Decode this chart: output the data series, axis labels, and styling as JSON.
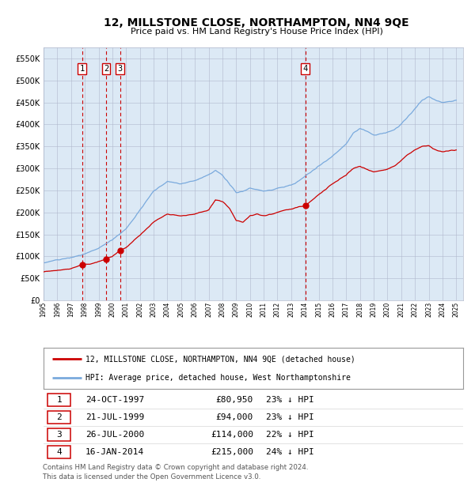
{
  "title": "12, MILLSTONE CLOSE, NORTHAMPTON, NN4 9QE",
  "subtitle": "Price paid vs. HM Land Registry's House Price Index (HPI)",
  "plot_bg_color": "#dce9f5",
  "ylim": [
    0,
    575000
  ],
  "yticks": [
    0,
    50000,
    100000,
    150000,
    200000,
    250000,
    300000,
    350000,
    400000,
    450000,
    500000,
    550000
  ],
  "transactions": [
    {
      "label": "1",
      "date": "24-OCT-1997",
      "price": 80950,
      "pct": "23%",
      "x_year": 1997.81
    },
    {
      "label": "2",
      "date": "21-JUL-1999",
      "price": 94000,
      "pct": "23%",
      "x_year": 1999.55
    },
    {
      "label": "3",
      "date": "26-JUL-2000",
      "price": 114000,
      "pct": "22%",
      "x_year": 2000.57
    },
    {
      "label": "4",
      "date": "16-JAN-2014",
      "price": 215000,
      "pct": "24%",
      "x_year": 2014.04
    }
  ],
  "hpi_line_color": "#7aaadd",
  "price_line_color": "#cc0000",
  "vline_color": "#cc0000",
  "marker_color": "#cc0000",
  "legend_label_price": "12, MILLSTONE CLOSE, NORTHAMPTON, NN4 9QE (detached house)",
  "legend_label_hpi": "HPI: Average price, detached house, West Northamptonshire",
  "footer": "Contains HM Land Registry data © Crown copyright and database right 2024.\nThis data is licensed under the Open Government Licence v3.0.",
  "xlim_start": 1995.0,
  "xlim_end": 2025.5,
  "hpi_seed_values": [
    [
      1995.0,
      85000
    ],
    [
      1996.0,
      92000
    ],
    [
      1997.0,
      97000
    ],
    [
      1998.0,
      105000
    ],
    [
      1999.0,
      118000
    ],
    [
      2000.0,
      138000
    ],
    [
      2001.0,
      162000
    ],
    [
      2002.0,
      205000
    ],
    [
      2003.0,
      248000
    ],
    [
      2004.0,
      270000
    ],
    [
      2005.0,
      265000
    ],
    [
      2006.0,
      272000
    ],
    [
      2007.0,
      285000
    ],
    [
      2007.5,
      295000
    ],
    [
      2008.0,
      285000
    ],
    [
      2008.5,
      265000
    ],
    [
      2009.0,
      245000
    ],
    [
      2009.5,
      248000
    ],
    [
      2010.0,
      255000
    ],
    [
      2010.5,
      252000
    ],
    [
      2011.0,
      248000
    ],
    [
      2011.5,
      250000
    ],
    [
      2012.0,
      255000
    ],
    [
      2012.5,
      258000
    ],
    [
      2013.0,
      262000
    ],
    [
      2013.5,
      270000
    ],
    [
      2014.0,
      282000
    ],
    [
      2015.0,
      305000
    ],
    [
      2016.0,
      328000
    ],
    [
      2017.0,
      355000
    ],
    [
      2017.5,
      380000
    ],
    [
      2018.0,
      390000
    ],
    [
      2018.5,
      385000
    ],
    [
      2019.0,
      375000
    ],
    [
      2019.5,
      378000
    ],
    [
      2020.0,
      382000
    ],
    [
      2020.5,
      388000
    ],
    [
      2021.0,
      400000
    ],
    [
      2021.5,
      418000
    ],
    [
      2022.0,
      435000
    ],
    [
      2022.5,
      455000
    ],
    [
      2023.0,
      463000
    ],
    [
      2023.5,
      455000
    ],
    [
      2024.0,
      450000
    ],
    [
      2024.5,
      452000
    ],
    [
      2025.0,
      455000
    ]
  ],
  "price_seed_values": [
    [
      1995.0,
      65000
    ],
    [
      1996.0,
      68000
    ],
    [
      1997.0,
      72000
    ],
    [
      1997.81,
      80950
    ],
    [
      1998.5,
      83000
    ],
    [
      1999.0,
      88000
    ],
    [
      1999.55,
      94000
    ],
    [
      2000.0,
      100000
    ],
    [
      2000.57,
      114000
    ],
    [
      2001.0,
      120000
    ],
    [
      2002.0,
      148000
    ],
    [
      2003.0,
      178000
    ],
    [
      2004.0,
      196000
    ],
    [
      2005.0,
      192000
    ],
    [
      2006.0,
      196000
    ],
    [
      2007.0,
      205000
    ],
    [
      2007.5,
      228000
    ],
    [
      2008.0,
      225000
    ],
    [
      2008.5,
      210000
    ],
    [
      2009.0,
      182000
    ],
    [
      2009.5,
      178000
    ],
    [
      2010.0,
      192000
    ],
    [
      2010.5,
      196000
    ],
    [
      2011.0,
      192000
    ],
    [
      2011.5,
      195000
    ],
    [
      2012.0,
      200000
    ],
    [
      2012.5,
      205000
    ],
    [
      2013.0,
      208000
    ],
    [
      2013.5,
      212000
    ],
    [
      2014.04,
      215000
    ],
    [
      2015.0,
      240000
    ],
    [
      2016.0,
      265000
    ],
    [
      2017.0,
      285000
    ],
    [
      2017.5,
      300000
    ],
    [
      2018.0,
      305000
    ],
    [
      2018.5,
      298000
    ],
    [
      2019.0,
      292000
    ],
    [
      2019.5,
      295000
    ],
    [
      2020.0,
      298000
    ],
    [
      2020.5,
      305000
    ],
    [
      2021.0,
      318000
    ],
    [
      2021.5,
      332000
    ],
    [
      2022.0,
      342000
    ],
    [
      2022.5,
      350000
    ],
    [
      2023.0,
      352000
    ],
    [
      2023.5,
      342000
    ],
    [
      2024.0,
      338000
    ],
    [
      2024.5,
      340000
    ],
    [
      2025.0,
      342000
    ]
  ]
}
